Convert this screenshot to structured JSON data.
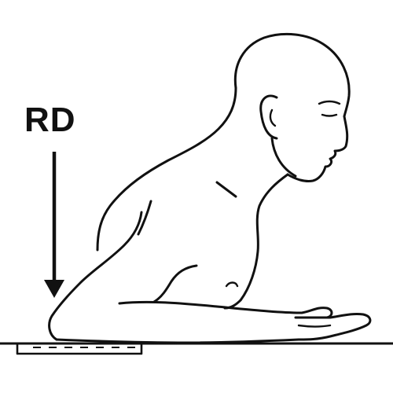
{
  "diagram": {
    "label": "RD"
  }
}
